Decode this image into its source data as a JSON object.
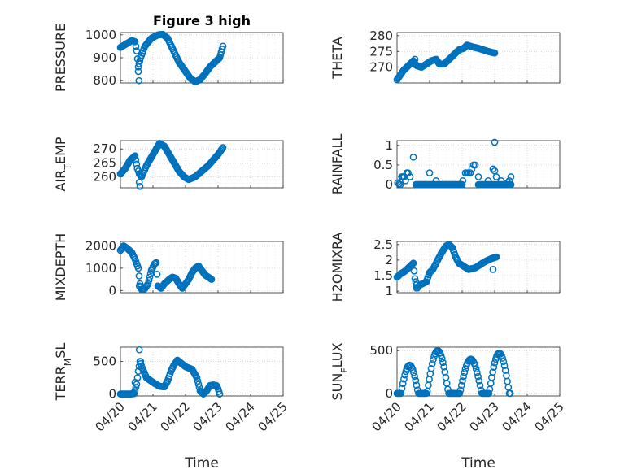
{
  "chart_data": [
    {
      "type": "scatter",
      "title": "Figure 3 high",
      "ylabel": "PRESSURE",
      "ylim": [
        790,
        1010
      ],
      "yticks": [
        800,
        900,
        1000
      ],
      "xlim": [
        0,
        5
      ],
      "xticks": [
        "",
        "",
        "",
        "",
        "",
        ""
      ],
      "grid": true,
      "anchors": [
        [
          0,
          945
        ],
        [
          0.2,
          962
        ],
        [
          0.35,
          975
        ],
        [
          0.45,
          970
        ],
        [
          0.5,
          930
        ],
        [
          0.55,
          860
        ],
        [
          0.62,
          900
        ],
        [
          0.75,
          950
        ],
        [
          0.95,
          985
        ],
        [
          1.15,
          1000
        ],
        [
          1.3,
          1002
        ],
        [
          1.45,
          985
        ],
        [
          1.6,
          940
        ],
        [
          1.8,
          880
        ],
        [
          2.0,
          840
        ],
        [
          2.15,
          810
        ],
        [
          2.3,
          795
        ],
        [
          2.45,
          805
        ],
        [
          2.6,
          830
        ],
        [
          2.75,
          860
        ],
        [
          2.9,
          880
        ],
        [
          3.05,
          900
        ],
        [
          3.15,
          950
        ]
      ],
      "outliers": [
        [
          0.55,
          840
        ],
        [
          0.57,
          800
        ]
      ]
    },
    {
      "type": "scatter",
      "title": "",
      "ylabel": "THETA",
      "ylim": [
        265,
        281
      ],
      "yticks": [
        270,
        275,
        280
      ],
      "xlim": [
        0,
        5
      ],
      "xticks": [
        "",
        "",
        "",
        "",
        "",
        ""
      ],
      "grid": true,
      "anchors": [
        [
          0,
          266
        ],
        [
          0.2,
          269
        ],
        [
          0.35,
          270.5
        ],
        [
          0.5,
          272
        ],
        [
          0.6,
          270.5
        ],
        [
          0.75,
          270
        ],
        [
          0.9,
          271
        ],
        [
          1.05,
          272
        ],
        [
          1.2,
          272.5
        ],
        [
          1.3,
          271
        ],
        [
          1.45,
          271
        ],
        [
          1.6,
          272.5
        ],
        [
          1.75,
          274
        ],
        [
          1.9,
          275.5
        ],
        [
          2.05,
          276
        ],
        [
          2.15,
          277
        ],
        [
          2.3,
          276.5
        ],
        [
          2.5,
          276
        ],
        [
          2.65,
          275.5
        ],
        [
          2.8,
          275
        ],
        [
          3.0,
          274.5
        ]
      ],
      "outliers": [
        [
          0.55,
          272.5
        ]
      ]
    },
    {
      "type": "scatter",
      "title": "",
      "ylabel": "AIR_TEMP",
      "ylim": [
        256,
        273
      ],
      "yticks": [
        260,
        265,
        270
      ],
      "xlim": [
        0,
        5
      ],
      "xticks": [
        "",
        "",
        "",
        "",
        "",
        ""
      ],
      "grid": true,
      "anchors": [
        [
          0,
          261
        ],
        [
          0.15,
          263
        ],
        [
          0.3,
          266
        ],
        [
          0.45,
          267.5
        ],
        [
          0.52,
          263
        ],
        [
          0.58,
          261
        ],
        [
          0.65,
          260
        ],
        [
          0.8,
          264
        ],
        [
          1.0,
          268
        ],
        [
          1.2,
          272
        ],
        [
          1.35,
          271
        ],
        [
          1.5,
          268
        ],
        [
          1.65,
          265
        ],
        [
          1.8,
          262
        ],
        [
          1.95,
          260
        ],
        [
          2.1,
          259
        ],
        [
          2.3,
          260
        ],
        [
          2.5,
          262
        ],
        [
          2.7,
          264
        ],
        [
          2.85,
          266
        ],
        [
          3.0,
          268
        ],
        [
          3.15,
          270.5
        ]
      ],
      "outliers": [
        [
          0.58,
          258
        ],
        [
          0.6,
          256.5
        ]
      ]
    },
    {
      "type": "scatter",
      "title": "",
      "ylabel": "RAINFALL",
      "ylim": [
        -0.08,
        1.12
      ],
      "yticks": [
        0,
        0.5,
        1
      ],
      "yticklabels": [
        "0",
        "0.5",
        "1"
      ],
      "xlim": [
        0,
        5
      ],
      "xticks": [
        "",
        "",
        "",
        "",
        "",
        ""
      ],
      "grid": true,
      "pts": [
        [
          0.02,
          0.05
        ],
        [
          0.06,
          0.02
        ],
        [
          0.1,
          0
        ],
        [
          0.14,
          0.2
        ],
        [
          0.18,
          0.2
        ],
        [
          0.22,
          0.2
        ],
        [
          0.26,
          0.1
        ],
        [
          0.3,
          0.3
        ],
        [
          0.34,
          0.3
        ],
        [
          0.4,
          0.2
        ],
        [
          0.5,
          0.7
        ],
        [
          0.58,
          0
        ],
        [
          0.7,
          0
        ],
        [
          0.85,
          0
        ],
        [
          1.0,
          0.3
        ],
        [
          1.02,
          0
        ],
        [
          1.1,
          0
        ],
        [
          1.2,
          0.1
        ],
        [
          1.3,
          0
        ],
        [
          1.4,
          0
        ],
        [
          1.5,
          0
        ],
        [
          1.6,
          0
        ],
        [
          1.7,
          0
        ],
        [
          1.8,
          0
        ],
        [
          1.9,
          0
        ],
        [
          2.0,
          0
        ],
        [
          2.02,
          0.1
        ],
        [
          2.1,
          0.3
        ],
        [
          2.15,
          0.3
        ],
        [
          2.2,
          0.3
        ],
        [
          2.25,
          0.3
        ],
        [
          2.3,
          0.4
        ],
        [
          2.35,
          0.5
        ],
        [
          2.4,
          0.5
        ],
        [
          2.5,
          0.2
        ],
        [
          2.6,
          0
        ],
        [
          2.7,
          0
        ],
        [
          2.8,
          0.1
        ],
        [
          2.9,
          0
        ],
        [
          2.95,
          0.4
        ],
        [
          3.0,
          0.35
        ],
        [
          3.0,
          1.08
        ],
        [
          3.05,
          0.2
        ],
        [
          3.1,
          0
        ],
        [
          3.2,
          0.1
        ],
        [
          3.3,
          0
        ],
        [
          3.4,
          0.05
        ],
        [
          3.45,
          0.1
        ],
        [
          3.5,
          0.2
        ]
      ],
      "runs": [
        [
          0.6,
          2.0,
          0
        ],
        [
          2.5,
          3.5,
          0
        ]
      ]
    },
    {
      "type": "scatter",
      "title": "",
      "ylabel": "MIXDEPTH",
      "ylim": [
        -100,
        2200
      ],
      "yticks": [
        0,
        1000,
        2000
      ],
      "xlim": [
        0,
        5
      ],
      "xticks": [
        "",
        "",
        "",
        "",
        "",
        ""
      ],
      "grid": true,
      "anchors": [
        [
          0,
          1800
        ],
        [
          0.1,
          2000
        ],
        [
          0.2,
          1900
        ],
        [
          0.35,
          1700
        ],
        [
          0.45,
          1400
        ],
        [
          0.55,
          1000
        ],
        [
          0.6,
          300
        ],
        [
          0.65,
          50
        ],
        [
          0.75,
          80
        ],
        [
          0.85,
          300
        ],
        [
          0.95,
          900
        ],
        [
          1.05,
          1200
        ],
        [
          1.1,
          1250
        ],
        [
          1.15,
          200
        ],
        [
          1.25,
          100
        ],
        [
          1.35,
          300
        ],
        [
          1.5,
          500
        ],
        [
          1.6,
          600
        ],
        [
          1.7,
          550
        ],
        [
          1.8,
          300
        ],
        [
          1.9,
          100
        ],
        [
          2.0,
          300
        ],
        [
          2.1,
          500
        ],
        [
          2.2,
          800
        ],
        [
          2.3,
          1000
        ],
        [
          2.4,
          1100
        ],
        [
          2.5,
          900
        ],
        [
          2.6,
          700
        ],
        [
          2.7,
          600
        ],
        [
          2.8,
          500
        ]
      ],
      "outliers": [
        [
          0.58,
          200
        ]
      ]
    },
    {
      "type": "scatter",
      "title": "",
      "ylabel": "H2OMIXRA",
      "ylim": [
        0.95,
        2.6
      ],
      "yticks": [
        1,
        1.5,
        2,
        2.5
      ],
      "yticklabels": [
        "1",
        "1.5",
        "2",
        "2.5"
      ],
      "xlim": [
        0,
        5
      ],
      "xticks": [
        "",
        "",
        "",
        "",
        "",
        ""
      ],
      "grid": true,
      "anchors": [
        [
          0,
          1.45
        ],
        [
          0.1,
          1.55
        ],
        [
          0.25,
          1.65
        ],
        [
          0.4,
          1.8
        ],
        [
          0.5,
          1.9
        ],
        [
          0.55,
          1.4
        ],
        [
          0.62,
          1.1
        ],
        [
          0.7,
          1.2
        ],
        [
          0.8,
          1.25
        ],
        [
          0.9,
          1.3
        ],
        [
          1.0,
          1.6
        ],
        [
          1.1,
          1.7
        ],
        [
          1.2,
          1.9
        ],
        [
          1.35,
          2.2
        ],
        [
          1.5,
          2.45
        ],
        [
          1.6,
          2.5
        ],
        [
          1.7,
          2.4
        ],
        [
          1.8,
          2.1
        ],
        [
          1.9,
          1.9
        ],
        [
          2.05,
          1.8
        ],
        [
          2.2,
          1.7
        ],
        [
          2.4,
          1.75
        ],
        [
          2.55,
          1.85
        ],
        [
          2.7,
          1.95
        ],
        [
          2.9,
          2.05
        ],
        [
          3.05,
          2.1
        ]
      ],
      "outliers": [
        [
          0.6,
          1.1
        ],
        [
          2.95,
          1.7
        ]
      ]
    },
    {
      "type": "scatter",
      "title": "",
      "ylabel": "TERR_MSL",
      "ylim": [
        -30,
        720
      ],
      "yticks": [
        0,
        500
      ],
      "xlim": [
        0,
        5
      ],
      "xticks": [
        "04/20",
        "04/21",
        "04/22",
        "04/23",
        "04/24",
        "04/25"
      ],
      "xlabel": "Time",
      "grid": true,
      "anchors": [
        [
          0,
          0
        ],
        [
          0.3,
          0
        ],
        [
          0.42,
          5
        ],
        [
          0.5,
          150
        ],
        [
          0.55,
          350
        ],
        [
          0.6,
          500
        ],
        [
          0.67,
          400
        ],
        [
          0.8,
          250
        ],
        [
          1.0,
          180
        ],
        [
          1.2,
          120
        ],
        [
          1.35,
          110
        ],
        [
          1.45,
          200
        ],
        [
          1.55,
          350
        ],
        [
          1.65,
          450
        ],
        [
          1.75,
          520
        ],
        [
          1.85,
          480
        ],
        [
          2.0,
          420
        ],
        [
          2.2,
          380
        ],
        [
          2.35,
          250
        ],
        [
          2.45,
          50
        ],
        [
          2.55,
          0
        ],
        [
          2.65,
          50
        ],
        [
          2.75,
          130
        ],
        [
          2.85,
          140
        ],
        [
          2.95,
          130
        ],
        [
          3.0,
          80
        ],
        [
          3.05,
          0
        ]
      ],
      "outliers": [
        [
          0.45,
          180
        ],
        [
          0.58,
          680
        ],
        [
          0.62,
          500
        ]
      ]
    },
    {
      "type": "scatter",
      "title": "",
      "ylabel": "SUN_FLUX",
      "ylim": [
        -30,
        540
      ],
      "yticks": [
        0,
        500
      ],
      "xlim": [
        0,
        5
      ],
      "xticks": [
        "04/20",
        "04/21",
        "04/22",
        "04/23",
        "04/24",
        "04/25"
      ],
      "xlabel": "Time",
      "grid": true,
      "days": [
        [
          0.12,
          0.65,
          330
        ],
        [
          0.92,
          1.58,
          500
        ],
        [
          1.93,
          2.6,
          400
        ],
        [
          2.83,
          3.45,
          470
        ]
      ]
    }
  ]
}
